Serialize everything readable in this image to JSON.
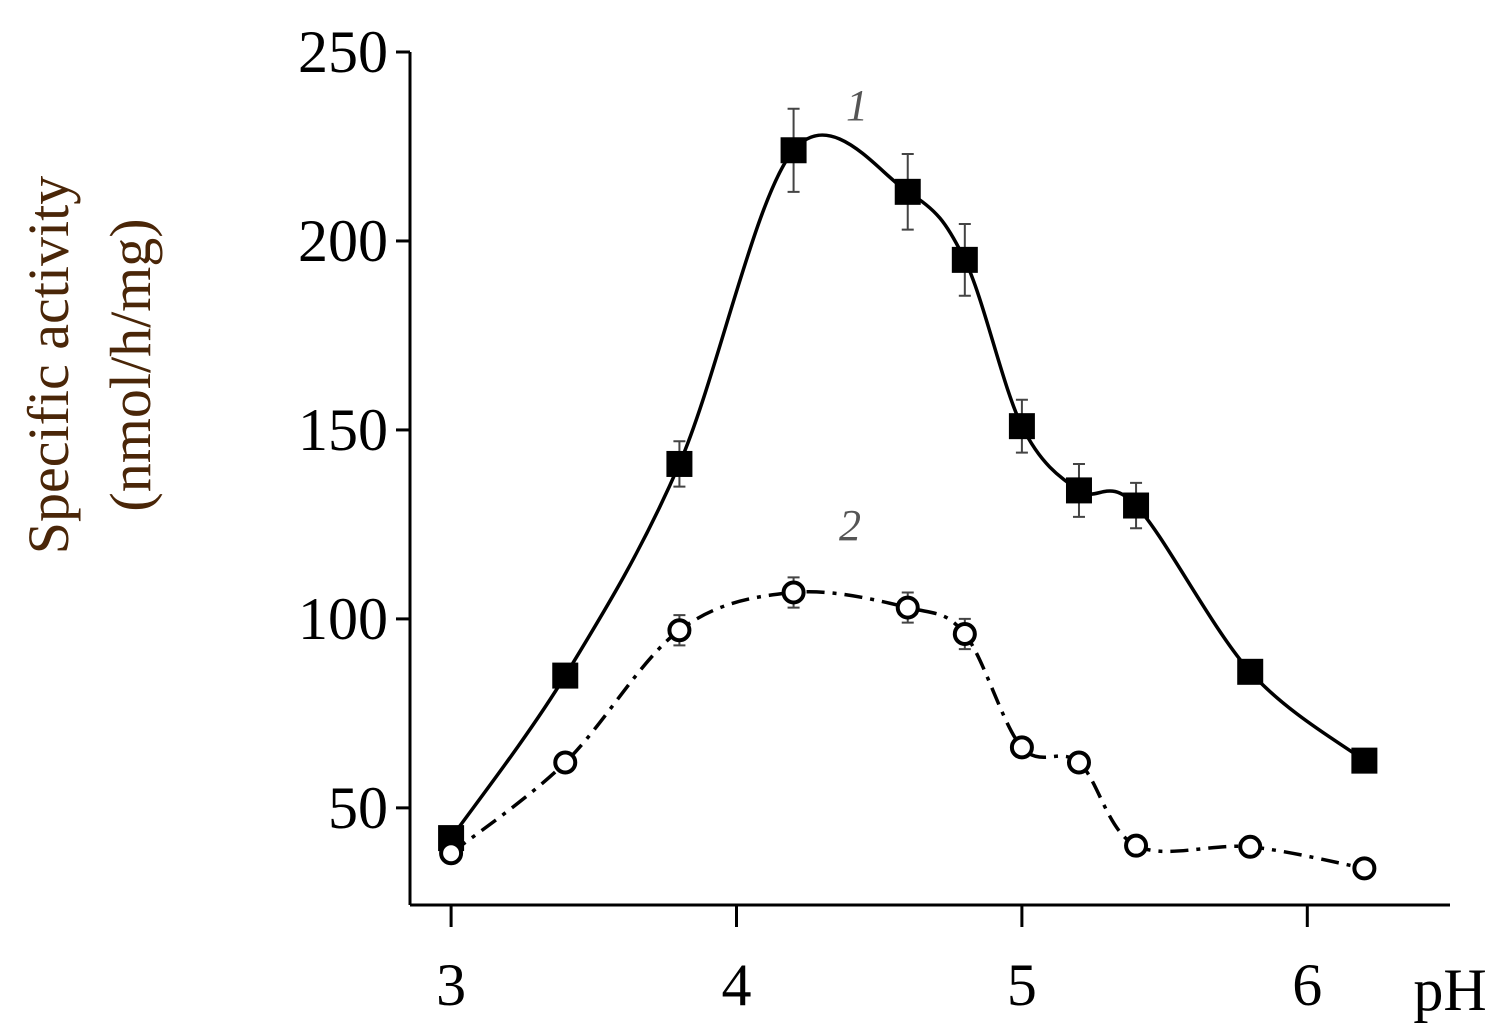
{
  "chart_data": {
    "type": "line",
    "ylabel": [
      "Specific activity",
      "(nmol/h/mg)"
    ],
    "xlabel": "pH",
    "xlim": [
      2.856,
      6.5
    ],
    "xticks": [
      3,
      4,
      5,
      6
    ],
    "ylim": [
      24.3,
      250
    ],
    "yticks": [
      50,
      100,
      150,
      200,
      250
    ],
    "grid": false,
    "annotations": [
      "1",
      "2"
    ],
    "series": [
      {
        "name": "1",
        "color": "#000000",
        "marker": "square",
        "line_style": "solid",
        "x": [
          3.0,
          3.4,
          3.8,
          4.2,
          4.6,
          4.8,
          5.0,
          5.2,
          5.4,
          5.8,
          6.2
        ],
        "values": [
          42,
          85,
          141,
          224,
          213,
          195,
          151,
          134,
          130,
          86,
          62.5
        ],
        "errors": [
          2,
          2,
          6,
          11,
          10,
          9.5,
          7,
          7,
          6,
          2,
          2
        ]
      },
      {
        "name": "2",
        "color": "#000000",
        "marker": "circle",
        "line_style": "dashdot",
        "x": [
          3.0,
          3.4,
          3.8,
          4.2,
          4.6,
          4.8,
          5.0,
          5.2,
          5.4,
          5.8,
          6.2
        ],
        "values": [
          38,
          62,
          97,
          107,
          103,
          96,
          66,
          62,
          40,
          39.7,
          34
        ],
        "errors": [
          2,
          2,
          4,
          4,
          4,
          4,
          2,
          2,
          2,
          2,
          2
        ]
      }
    ]
  }
}
